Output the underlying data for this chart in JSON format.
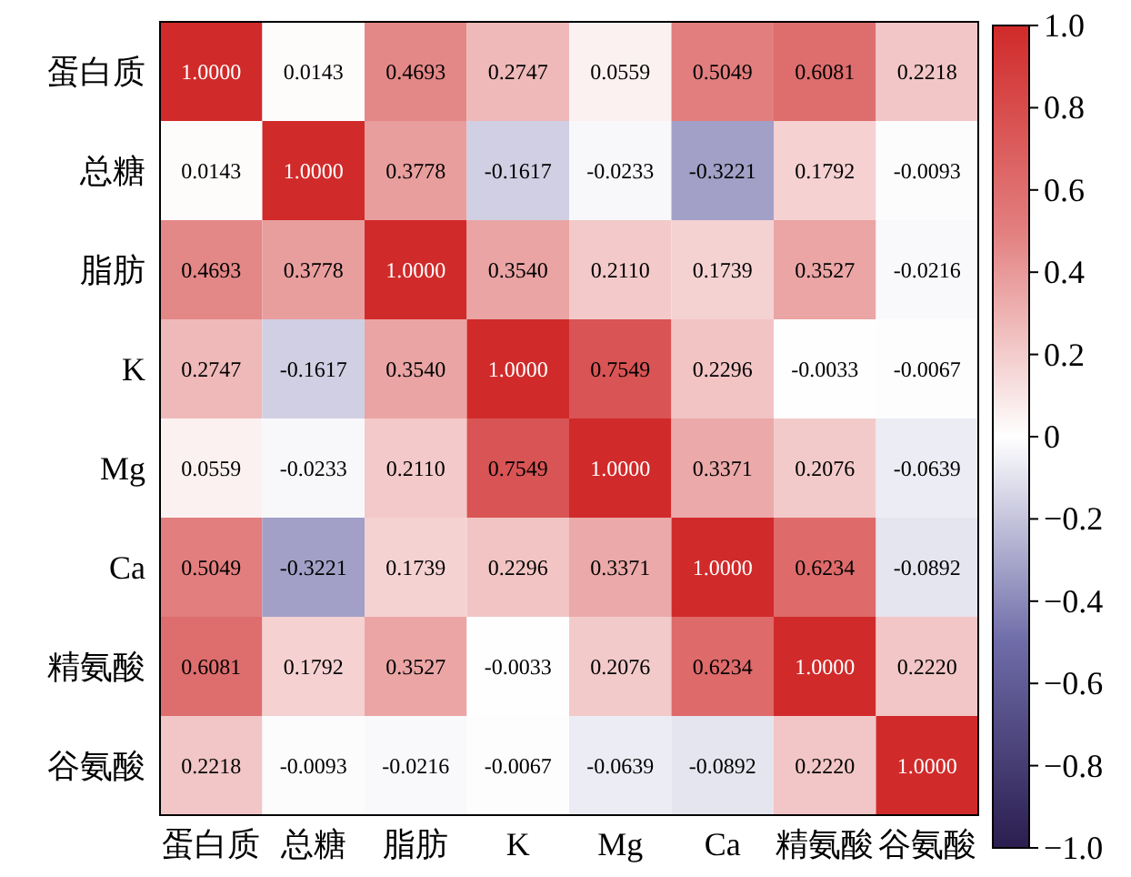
{
  "chart_data": {
    "type": "heatmap",
    "categories": [
      "蛋白质",
      "总糖",
      "脂肪",
      "K",
      "Mg",
      "Ca",
      "精氨酸",
      "谷氨酸"
    ],
    "y_categories": [
      "蛋白质",
      "总糖",
      "脂肪",
      "K",
      "Mg",
      "Ca",
      "精氨酸",
      "谷氨酸"
    ],
    "cells": [
      [
        1,
        0.0143,
        0.4693,
        0.2747,
        0.0559,
        0.5049,
        0.6081,
        0.2218
      ],
      [
        0.0143,
        1,
        0.3778,
        -0.1617,
        -0.0233,
        -0.3221,
        0.1792,
        -0.0093
      ],
      [
        0.4693,
        0.3778,
        1,
        0.354,
        0.211,
        0.1739,
        0.3527,
        -0.0216
      ],
      [
        0.2747,
        -0.1617,
        0.354,
        1,
        0.7549,
        0.2296,
        -0.0033,
        -0.0067
      ],
      [
        0.0559,
        -0.0233,
        0.211,
        0.7549,
        1,
        0.3371,
        0.2076,
        -0.0639
      ],
      [
        0.5049,
        -0.3221,
        0.1739,
        0.2296,
        0.3371,
        1,
        0.6234,
        -0.0892
      ],
      [
        0.6081,
        0.1792,
        0.3527,
        -0.0033,
        0.2076,
        0.6234,
        1,
        0.222
      ],
      [
        0.2218,
        -0.0093,
        -0.0216,
        -0.0067,
        -0.0639,
        -0.0892,
        0.222,
        1
      ]
    ],
    "cell_labels": [
      [
        "1.0000",
        "0.0143",
        "0.4693",
        "0.2747",
        "0.0559",
        "0.5049",
        "0.6081",
        "0.2218"
      ],
      [
        "0.0143",
        "1.0000",
        "0.3778",
        "-0.1617",
        "-0.0233",
        "-0.3221",
        "0.1792",
        "-0.0093"
      ],
      [
        "0.4693",
        "0.3778",
        "1.0000",
        "0.3540",
        "0.2110",
        "0.1739",
        "0.3527",
        "-0.0216"
      ],
      [
        "0.2747",
        "-0.1617",
        "0.3540",
        "1.0000",
        "0.7549",
        "0.2296",
        "-0.0033",
        "-0.0067"
      ],
      [
        "0.0559",
        "-0.0233",
        "0.2110",
        "0.7549",
        "1.0000",
        "0.3371",
        "0.2076",
        "-0.0639"
      ],
      [
        "0.5049",
        "-0.3221",
        "0.1739",
        "0.2296",
        "0.3371",
        "1.0000",
        "0.6234",
        "-0.0892"
      ],
      [
        "0.6081",
        "0.1792",
        "0.3527",
        "-0.0033",
        "0.2076",
        "0.6234",
        "1.0000",
        "0.2220"
      ],
      [
        "0.2218",
        "-0.0093",
        "-0.0216",
        "-0.0067",
        "-0.0639",
        "-0.0892",
        "0.2220",
        "1.0000"
      ]
    ],
    "data_labels": true,
    "clim": [
      -1,
      1
    ],
    "cticks": [
      {
        "value": -1,
        "label": "−1.0"
      },
      {
        "value": -0.8,
        "label": "−0.8"
      },
      {
        "value": -0.6,
        "label": "−0.6"
      },
      {
        "value": -0.4,
        "label": "−0.4"
      },
      {
        "value": -0.2,
        "label": "−0.2"
      },
      0,
      {
        "value": 0.2,
        "label": "0.2"
      },
      {
        "value": 0.4,
        "label": "0.4"
      },
      {
        "value": 0.6,
        "label": "0.6"
      },
      {
        "value": 0.8,
        "label": "0.8"
      },
      {
        "value": 1,
        "label": "1.0"
      }
    ]
  }
}
